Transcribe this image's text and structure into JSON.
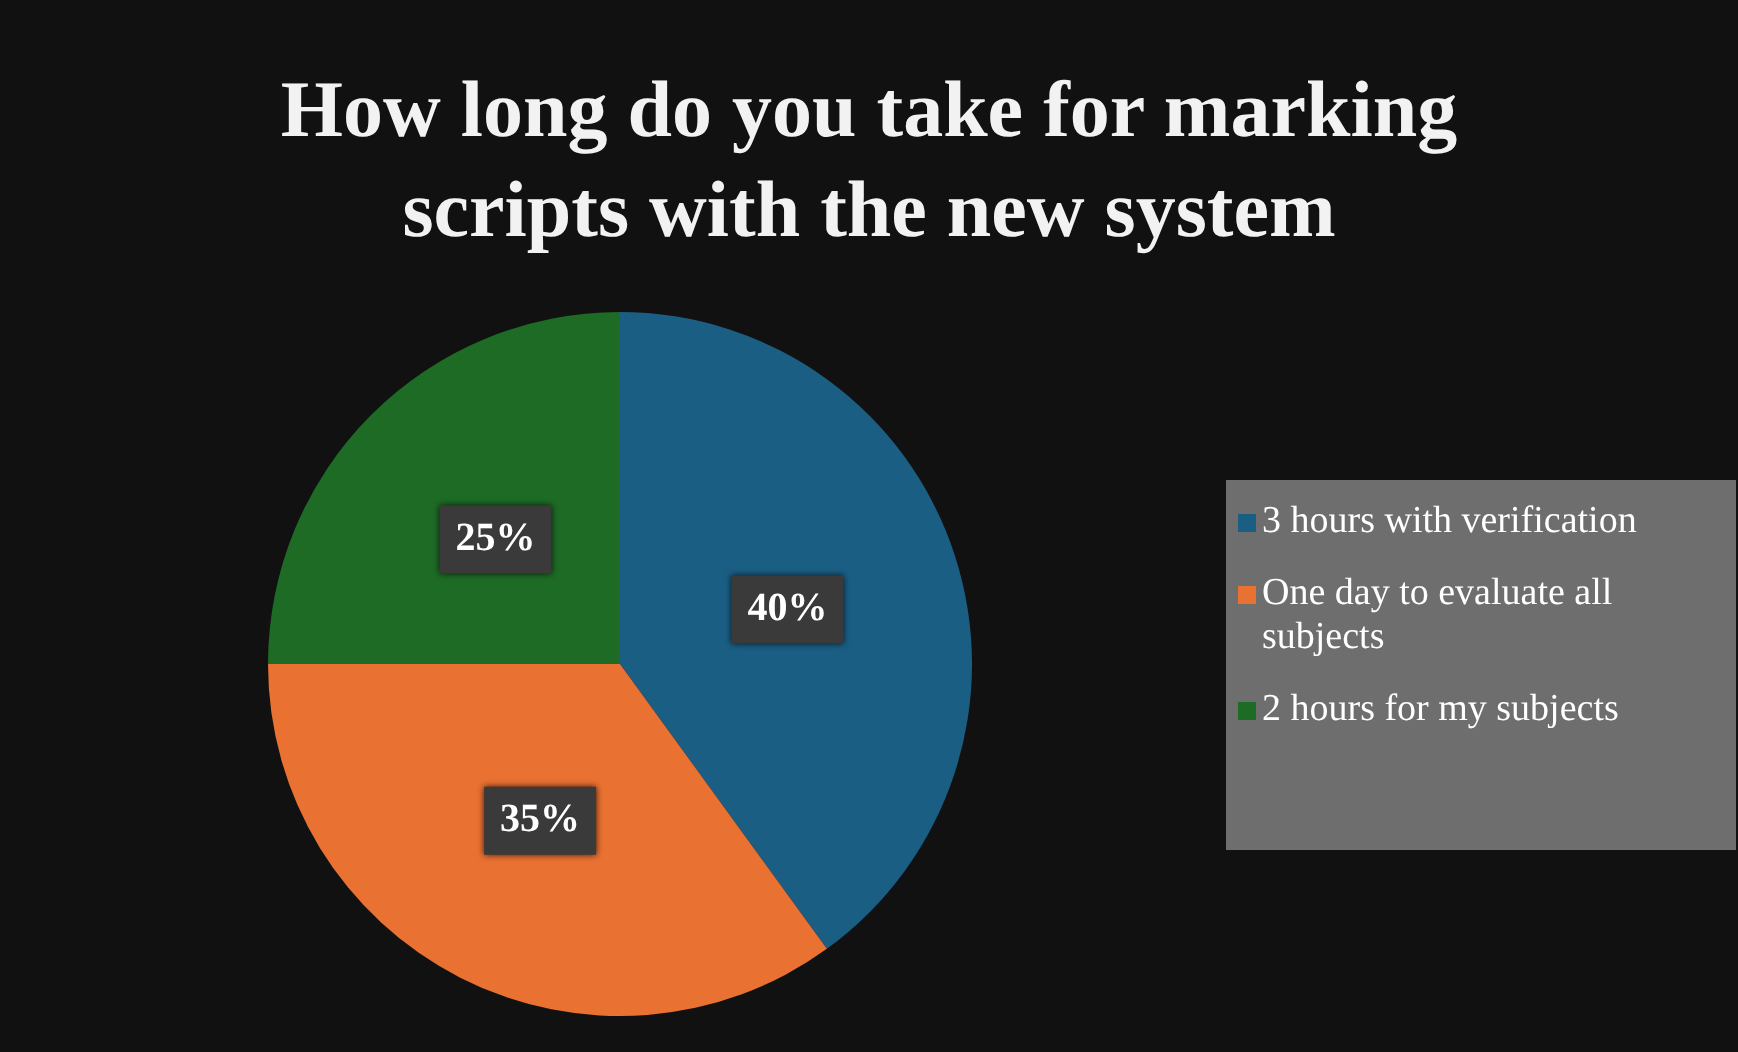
{
  "chart_data": {
    "type": "pie",
    "title": "How long do you take for marking scripts with the new system",
    "categories": [
      "3 hours with verification",
      "One day to evaluate all subjects",
      "2 hours for my subjects"
    ],
    "values": [
      40,
      35,
      25
    ],
    "colors": [
      "#1b5e84",
      "#e97132",
      "#1e6b26"
    ],
    "value_labels": [
      "40%",
      "35%",
      "25%"
    ],
    "legend": "right"
  }
}
